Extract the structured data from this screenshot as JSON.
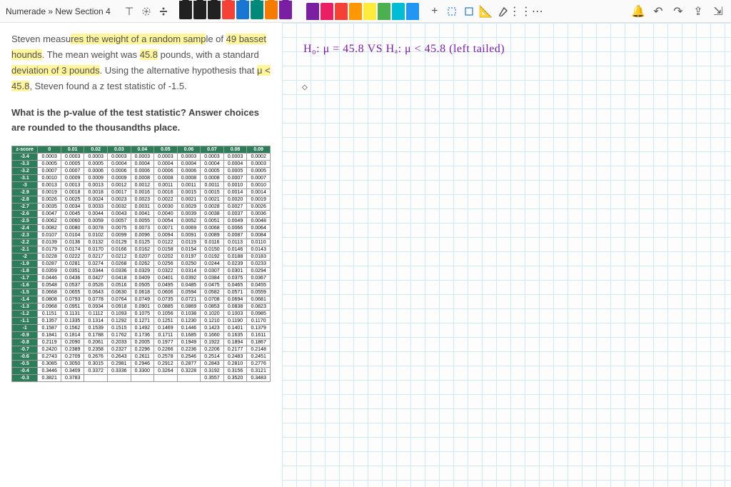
{
  "breadcrumb": "Numerade » New Section 4",
  "pens": [
    {
      "color": "#212121"
    },
    {
      "color": "#212121"
    },
    {
      "color": "#212121"
    },
    {
      "color": "#f44336"
    },
    {
      "color": "#1976d2"
    },
    {
      "color": "#00897b"
    },
    {
      "color": "#f57c00"
    },
    {
      "color": "#7b1fa2"
    }
  ],
  "highlighters": [
    {
      "color": "#7b1fa2"
    },
    {
      "color": "#e91e63"
    },
    {
      "color": "#f44336"
    },
    {
      "color": "#ff9800"
    },
    {
      "color": "#ffeb3b"
    },
    {
      "color": "#4caf50"
    },
    {
      "color": "#00bcd4"
    },
    {
      "color": "#2196f3"
    }
  ],
  "problem": {
    "p1a": "Steven measu",
    "p1b": "res the weight of a random samp",
    "p1c": "le of ",
    "p1d": "49 basset hounds",
    "p1e": ". The mean weight was ",
    "p1f": "45.8",
    "p1g": " pounds, with a standard ",
    "p1h": "deviation of 3 pounds",
    "p1i": ". Using the alternative hypothesis that ",
    "p1j": "μ < 45.8",
    "p1k": ", Steven found a z test statistic of -1.5."
  },
  "question": "What is the p-value of the test statistic?  Answer choices are rounded to the thousandths place.",
  "handwriting": "H₀: μ = 45.8   VS   Hₐ: μ < 45.8    (left tailed)",
  "ztable": {
    "headers": [
      "z-score",
      "0",
      "0.01",
      "0.02",
      "0.03",
      "0.04",
      "0.05",
      "0.06",
      "0.07",
      "0.08",
      "0.09"
    ],
    "rows": [
      [
        "-3.4",
        "0.0003",
        "0.0003",
        "0.0003",
        "0.0003",
        "0.0003",
        "0.0003",
        "0.0003",
        "0.0003",
        "0.0003",
        "0.0002"
      ],
      [
        "-3.3",
        "0.0005",
        "0.0005",
        "0.0005",
        "0.0004",
        "0.0004",
        "0.0004",
        "0.0004",
        "0.0004",
        "0.0004",
        "0.0003"
      ],
      [
        "-3.2",
        "0.0007",
        "0.0007",
        "0.0006",
        "0.0006",
        "0.0006",
        "0.0006",
        "0.0006",
        "0.0005",
        "0.0005",
        "0.0005"
      ],
      [
        "-3.1",
        "0.0010",
        "0.0009",
        "0.0009",
        "0.0009",
        "0.0008",
        "0.0008",
        "0.0008",
        "0.0008",
        "0.0007",
        "0.0007"
      ],
      [
        "-3",
        "0.0013",
        "0.0013",
        "0.0013",
        "0.0012",
        "0.0012",
        "0.0011",
        "0.0011",
        "0.0011",
        "0.0010",
        "0.0010"
      ],
      [
        "-2.9",
        "0.0019",
        "0.0018",
        "0.0018",
        "0.0017",
        "0.0016",
        "0.0016",
        "0.0015",
        "0.0015",
        "0.0014",
        "0.0014"
      ],
      [
        "-2.8",
        "0.0026",
        "0.0025",
        "0.0024",
        "0.0023",
        "0.0023",
        "0.0022",
        "0.0021",
        "0.0021",
        "0.0020",
        "0.0019"
      ],
      [
        "-2.7",
        "0.0035",
        "0.0034",
        "0.0033",
        "0.0032",
        "0.0031",
        "0.0030",
        "0.0029",
        "0.0028",
        "0.0027",
        "0.0026"
      ],
      [
        "-2.6",
        "0.0047",
        "0.0045",
        "0.0044",
        "0.0043",
        "0.0041",
        "0.0040",
        "0.0039",
        "0.0038",
        "0.0037",
        "0.0036"
      ],
      [
        "-2.5",
        "0.0062",
        "0.0060",
        "0.0059",
        "0.0057",
        "0.0055",
        "0.0054",
        "0.0052",
        "0.0051",
        "0.0049",
        "0.0048"
      ],
      [
        "-2.4",
        "0.0082",
        "0.0080",
        "0.0078",
        "0.0075",
        "0.0073",
        "0.0071",
        "0.0069",
        "0.0068",
        "0.0066",
        "0.0064"
      ],
      [
        "-2.3",
        "0.0107",
        "0.0104",
        "0.0102",
        "0.0099",
        "0.0096",
        "0.0094",
        "0.0091",
        "0.0089",
        "0.0087",
        "0.0084"
      ],
      [
        "-2.2",
        "0.0139",
        "0.0136",
        "0.0132",
        "0.0129",
        "0.0125",
        "0.0122",
        "0.0119",
        "0.0116",
        "0.0113",
        "0.0110"
      ],
      [
        "-2.1",
        "0.0179",
        "0.0174",
        "0.0170",
        "0.0166",
        "0.0162",
        "0.0158",
        "0.0154",
        "0.0150",
        "0.0146",
        "0.0143"
      ],
      [
        "-2",
        "0.0228",
        "0.0222",
        "0.0217",
        "0.0212",
        "0.0207",
        "0.0202",
        "0.0197",
        "0.0192",
        "0.0188",
        "0.0183"
      ],
      [
        "-1.9",
        "0.0287",
        "0.0281",
        "0.0274",
        "0.0268",
        "0.0262",
        "0.0256",
        "0.0250",
        "0.0244",
        "0.0239",
        "0.0233"
      ],
      [
        "-1.8",
        "0.0359",
        "0.0351",
        "0.0344",
        "0.0336",
        "0.0329",
        "0.0322",
        "0.0314",
        "0.0307",
        "0.0301",
        "0.0294"
      ],
      [
        "-1.7",
        "0.0446",
        "0.0436",
        "0.0427",
        "0.0418",
        "0.0409",
        "0.0401",
        "0.0392",
        "0.0384",
        "0.0375",
        "0.0367"
      ],
      [
        "-1.6",
        "0.0548",
        "0.0537",
        "0.0526",
        "0.0516",
        "0.0505",
        "0.0495",
        "0.0485",
        "0.0475",
        "0.0465",
        "0.0455"
      ],
      [
        "-1.5",
        "0.0668",
        "0.0655",
        "0.0643",
        "0.0630",
        "0.0618",
        "0.0606",
        "0.0594",
        "0.0582",
        "0.0571",
        "0.0559"
      ],
      [
        "-1.4",
        "0.0808",
        "0.0793",
        "0.0778",
        "0.0764",
        "0.0749",
        "0.0735",
        "0.0721",
        "0.0708",
        "0.0694",
        "0.0681"
      ],
      [
        "-1.3",
        "0.0968",
        "0.0951",
        "0.0934",
        "0.0918",
        "0.0901",
        "0.0885",
        "0.0869",
        "0.0853",
        "0.0838",
        "0.0823"
      ],
      [
        "-1.2",
        "0.1151",
        "0.1131",
        "0.1112",
        "0.1093",
        "0.1075",
        "0.1056",
        "0.1038",
        "0.1020",
        "0.1003",
        "0.0985"
      ],
      [
        "-1.1",
        "0.1357",
        "0.1335",
        "0.1314",
        "0.1292",
        "0.1271",
        "0.1251",
        "0.1230",
        "0.1210",
        "0.1190",
        "0.1170"
      ],
      [
        "-1",
        "0.1587",
        "0.1562",
        "0.1539",
        "0.1515",
        "0.1492",
        "0.1469",
        "0.1446",
        "0.1423",
        "0.1401",
        "0.1379"
      ],
      [
        "-0.9",
        "0.1841",
        "0.1814",
        "0.1788",
        "0.1762",
        "0.1736",
        "0.1711",
        "0.1685",
        "0.1660",
        "0.1635",
        "0.1611"
      ],
      [
        "-0.8",
        "0.2119",
        "0.2090",
        "0.2061",
        "0.2033",
        "0.2005",
        "0.1977",
        "0.1949",
        "0.1922",
        "0.1894",
        "0.1867"
      ],
      [
        "-0.7",
        "0.2420",
        "0.2389",
        "0.2358",
        "0.2327",
        "0.2296",
        "0.2266",
        "0.2236",
        "0.2206",
        "0.2177",
        "0.2148"
      ],
      [
        "-0.6",
        "0.2743",
        "0.2709",
        "0.2676",
        "0.2643",
        "0.2611",
        "0.2578",
        "0.2546",
        "0.2514",
        "0.2483",
        "0.2451"
      ],
      [
        "-0.5",
        "0.3085",
        "0.3050",
        "0.3015",
        "0.2981",
        "0.2946",
        "0.2912",
        "0.2877",
        "0.2843",
        "0.2810",
        "0.2776"
      ],
      [
        "-0.4",
        "0.3446",
        "0.3409",
        "0.3372",
        "0.3336",
        "0.3300",
        "0.3264",
        "0.3228",
        "0.3192",
        "0.3156",
        "0.3121"
      ],
      [
        "-0.3",
        "0.3821",
        "0.3783",
        "",
        "",
        "",
        "",
        "",
        "0.3557",
        "0.3520",
        "0.3483"
      ]
    ]
  }
}
